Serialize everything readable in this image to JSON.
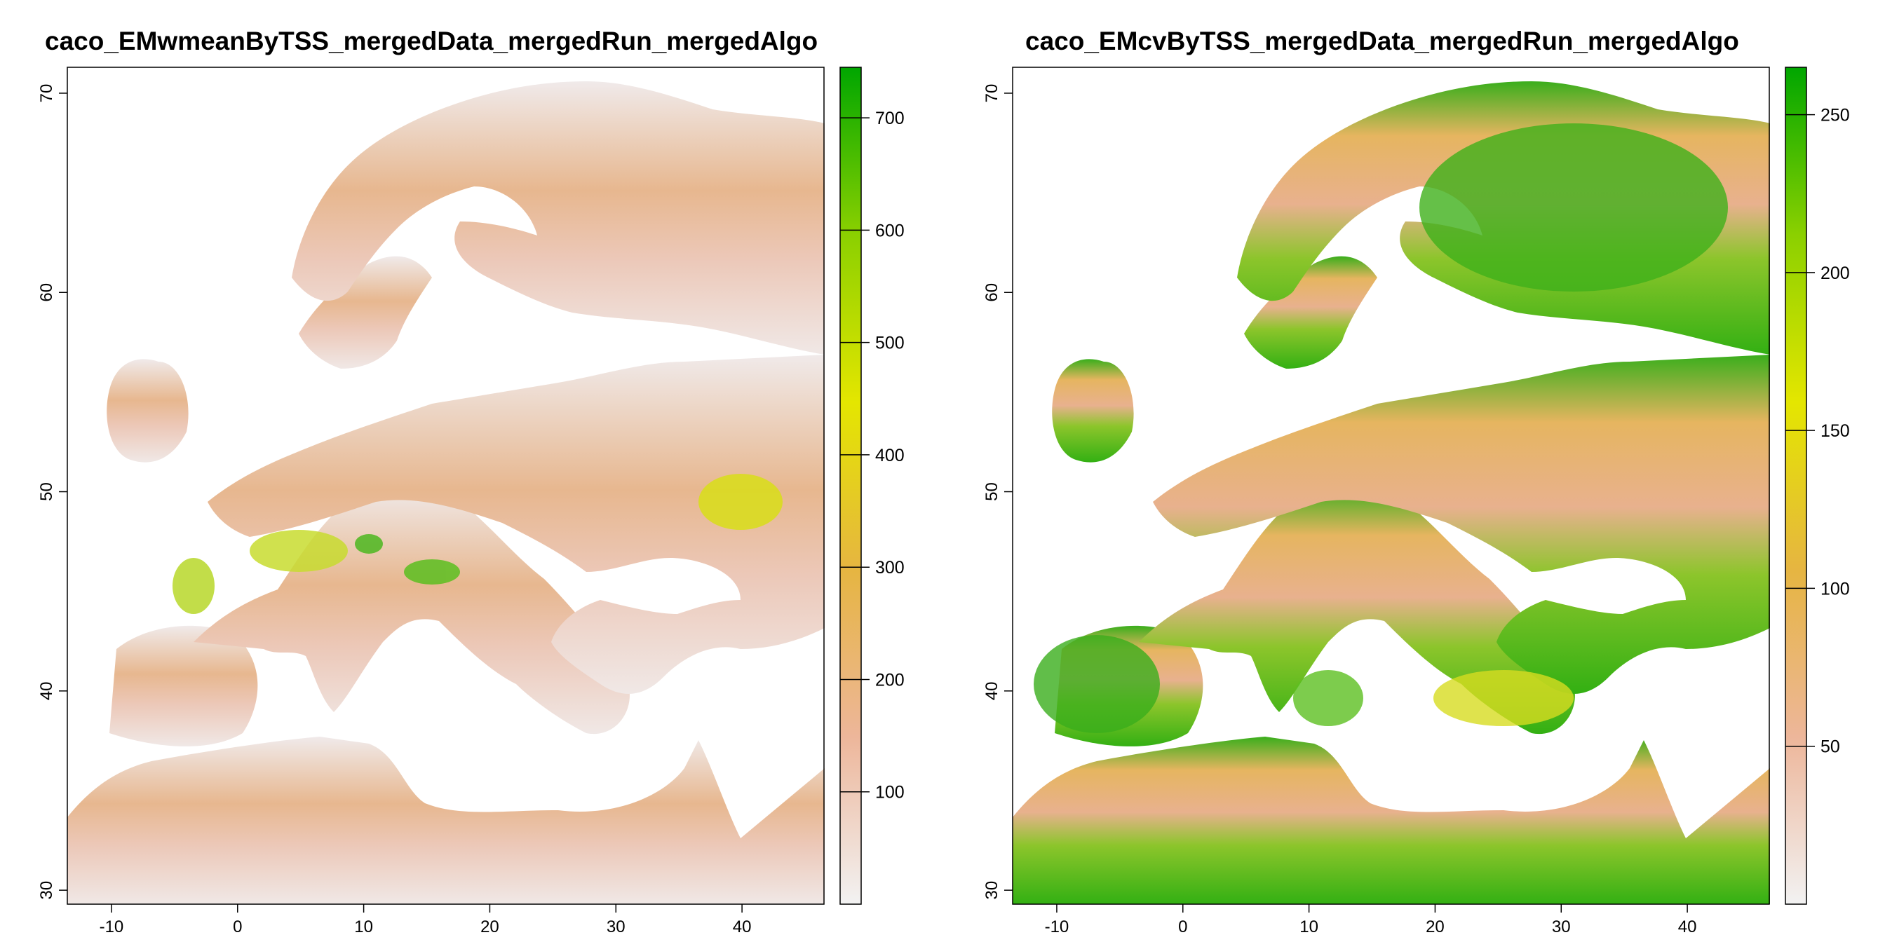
{
  "maps": [
    {
      "title": "caco_EMwmeanByTSS_mergedData_mergedRun_mergedAlgo",
      "x_ticks": [
        "-10",
        "0",
        "10",
        "20",
        "30",
        "40"
      ],
      "y_ticks": [
        "30",
        "40",
        "50",
        "60",
        "70"
      ],
      "legend": {
        "ticks": [
          "100",
          "200",
          "300",
          "400",
          "500",
          "600",
          "700"
        ],
        "max_value": 745,
        "colors": [
          "#f2f2f2",
          "#edb69a",
          "#e6b541",
          "#e4e600",
          "#8bd000",
          "#00a600"
        ]
      }
    },
    {
      "title": "caco_EMcvByTSS_mergedData_mergedRun_mergedAlgo",
      "x_ticks": [
        "-10",
        "0",
        "10",
        "20",
        "30",
        "40"
      ],
      "y_ticks": [
        "30",
        "40",
        "50",
        "60",
        "70"
      ],
      "legend": {
        "ticks": [
          "50",
          "100",
          "150",
          "200",
          "250"
        ],
        "max_value": 265,
        "colors": [
          "#f2f2f2",
          "#edb69a",
          "#e6b541",
          "#e4e600",
          "#8bd000",
          "#00a600"
        ]
      }
    }
  ]
}
